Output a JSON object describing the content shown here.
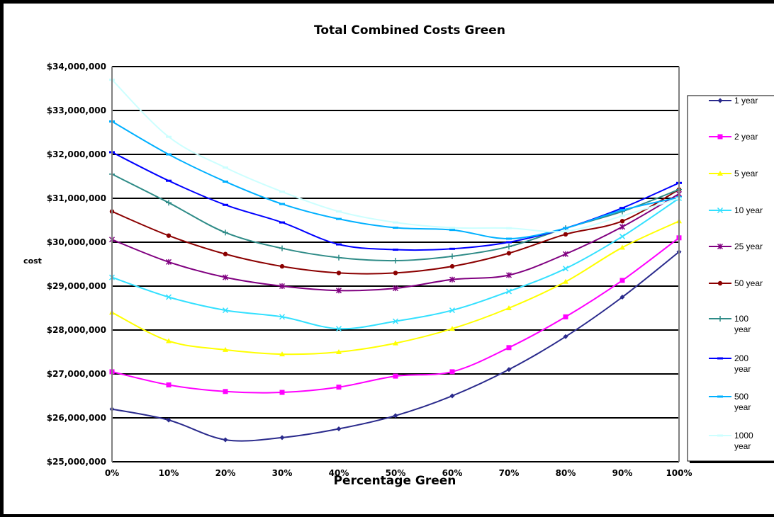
{
  "chart_data": {
    "type": "line",
    "title": "Total Combined  Costs Green",
    "xlabel": "Percentage Green",
    "ylabel": "cost",
    "x": [
      0,
      10,
      20,
      30,
      40,
      50,
      60,
      70,
      80,
      90,
      100
    ],
    "x_tick_labels": [
      "0%",
      "10%",
      "20%",
      "30%",
      "40%",
      "50%",
      "60%",
      "70%",
      "80%",
      "90%",
      "100%"
    ],
    "ylim": [
      25000000,
      34000000
    ],
    "y_ticks": [
      25000000,
      26000000,
      27000000,
      28000000,
      29000000,
      30000000,
      31000000,
      32000000,
      33000000,
      34000000
    ],
    "y_tick_labels": [
      "$25,000,000",
      "$26,000,000",
      "$27,000,000",
      "$28,000,000",
      "$29,000,000",
      "$30,000,000",
      "$31,000,000",
      "$32,000,000",
      "$33,000,000",
      "$34,000,000"
    ],
    "grid": "horizontal",
    "legend_position": "right",
    "series": [
      {
        "name": "1 year",
        "color": "#2a2a8c",
        "marker": "diamond",
        "values": [
          26200000,
          25950000,
          25500000,
          25550000,
          25750000,
          26050000,
          26500000,
          27100000,
          27850000,
          28750000,
          29780000
        ]
      },
      {
        "name": "2 year",
        "color": "#ff00ff",
        "marker": "square",
        "values": [
          27050000,
          26750000,
          26600000,
          26580000,
          26700000,
          26950000,
          27050000,
          27600000,
          28300000,
          29130000,
          30100000
        ]
      },
      {
        "name": "5 year",
        "color": "#ffff00",
        "marker": "triangle",
        "values": [
          28400000,
          27750000,
          27550000,
          27450000,
          27500000,
          27700000,
          28030000,
          28500000,
          29100000,
          29880000,
          30480000
        ]
      },
      {
        "name": "10 year",
        "color": "#33e0ff",
        "marker": "x",
        "values": [
          29200000,
          28750000,
          28450000,
          28300000,
          28030000,
          28200000,
          28450000,
          28880000,
          29400000,
          30130000,
          31000000
        ]
      },
      {
        "name": "25 year",
        "color": "#800080",
        "marker": "star",
        "values": [
          30060000,
          29550000,
          29200000,
          29000000,
          28900000,
          28950000,
          29150000,
          29250000,
          29730000,
          30350000,
          31100000
        ]
      },
      {
        "name": "50 year",
        "color": "#8b0000",
        "marker": "circle",
        "values": [
          30700000,
          30150000,
          29730000,
          29450000,
          29300000,
          29300000,
          29450000,
          29750000,
          30180000,
          30480000,
          31200000
        ]
      },
      {
        "name": "100 year",
        "color": "#2e8b87",
        "marker": "plus",
        "values": [
          31550000,
          30900000,
          30220000,
          29860000,
          29650000,
          29580000,
          29680000,
          29900000,
          30320000,
          30700000,
          31200000
        ]
      },
      {
        "name": "200 year",
        "color": "#0000ff",
        "marker": "dash",
        "values": [
          32050000,
          31400000,
          30850000,
          30450000,
          29950000,
          29830000,
          29850000,
          30000000,
          30320000,
          30780000,
          31350000
        ]
      },
      {
        "name": "500 year",
        "color": "#00b0ff",
        "marker": "dash",
        "values": [
          32750000,
          32000000,
          31380000,
          30870000,
          30530000,
          30330000,
          30280000,
          30080000,
          30320000,
          30730000,
          31020000
        ]
      },
      {
        "name": "1000 year",
        "color": "#ccffff",
        "marker": "dash",
        "values": [
          33700000,
          32400000,
          31700000,
          31150000,
          30700000,
          30450000,
          30330000,
          30320000,
          30250000,
          30600000,
          31000000
        ]
      }
    ]
  }
}
